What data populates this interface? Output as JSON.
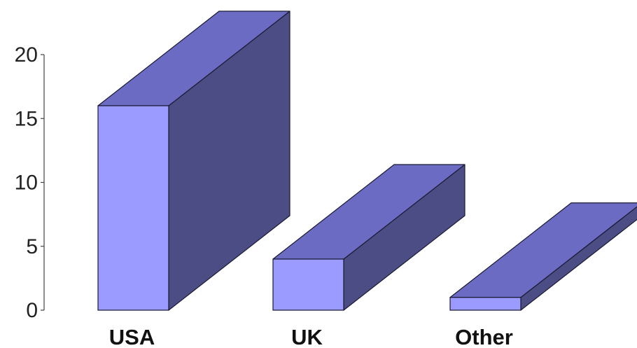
{
  "chart_data": {
    "type": "bar",
    "style": "3d",
    "categories": [
      "USA",
      "UK",
      "Other"
    ],
    "values": [
      16,
      4,
      1
    ],
    "ylim": [
      0,
      20
    ],
    "yticks": [
      0,
      5,
      10,
      15,
      20
    ],
    "grid": false,
    "legend": "none",
    "title": "",
    "xlabel": "",
    "ylabel": "",
    "colors": {
      "front": "#9a9aff",
      "top": "#6b6bc4",
      "side": "#4d4d86",
      "edge": "#1a1a33",
      "axis": "#444444"
    }
  }
}
